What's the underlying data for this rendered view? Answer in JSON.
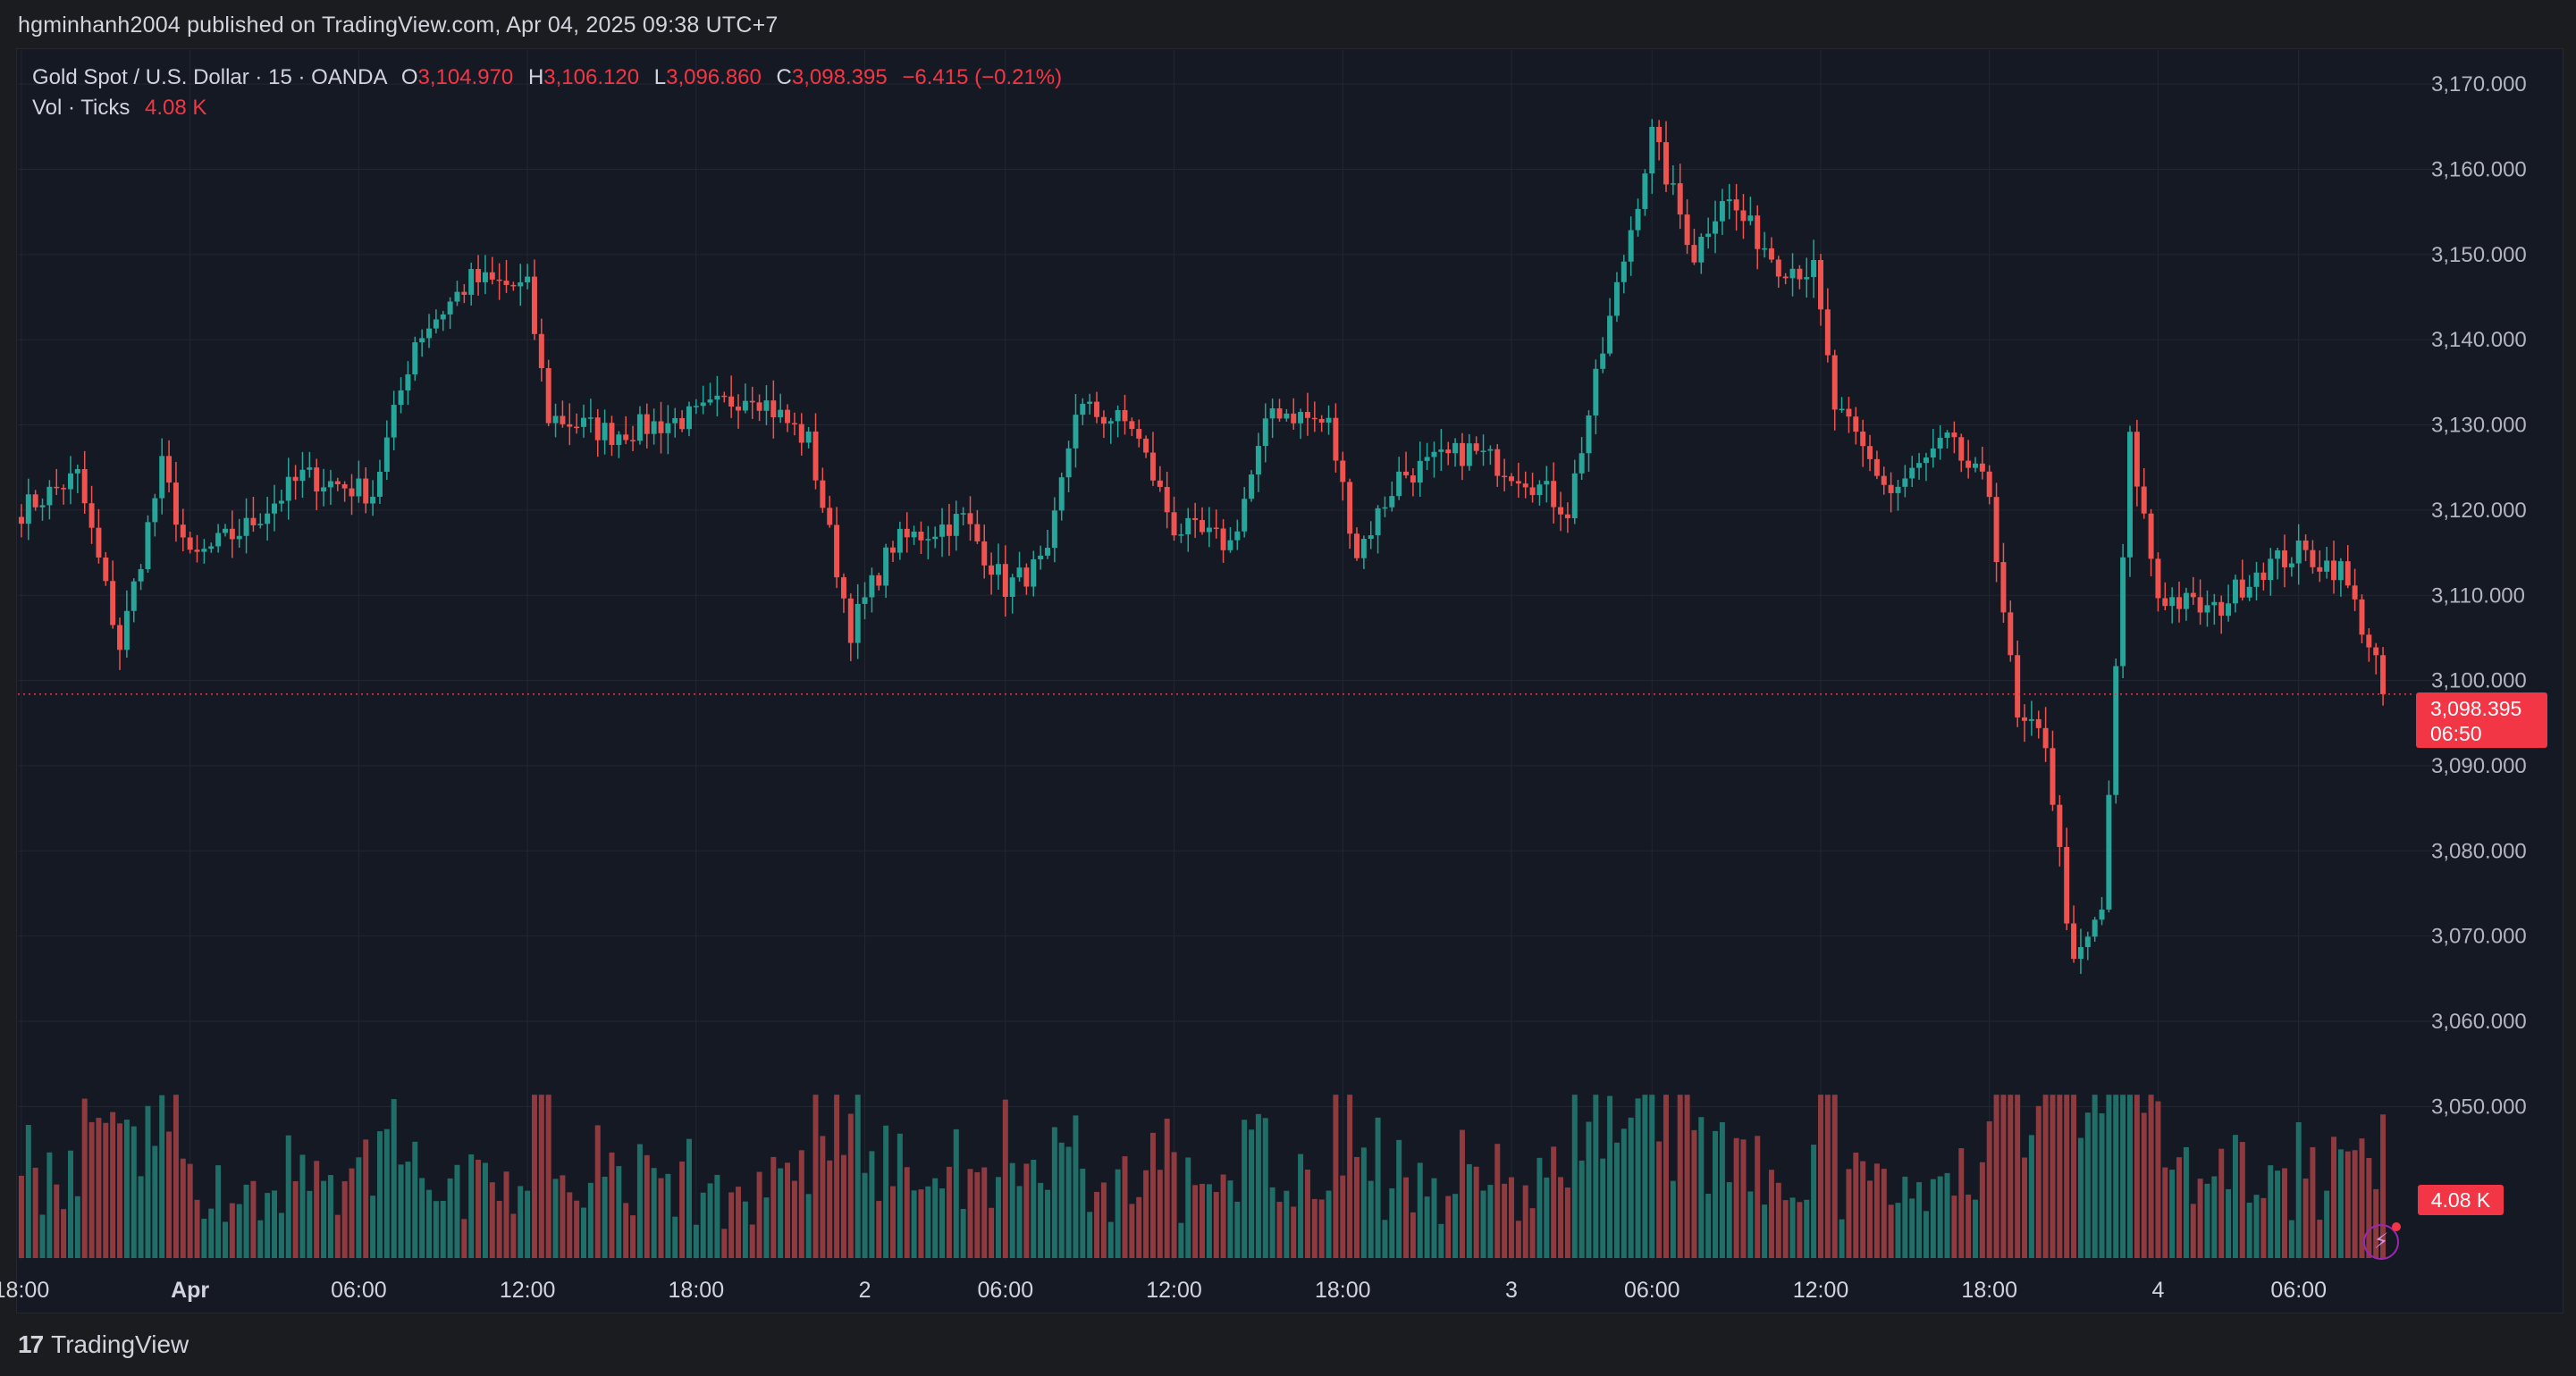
{
  "header": {
    "publish_text": "hgminhanh2004 published on TradingView.com, Apr 04, 2025 09:38 UTC+7"
  },
  "legend": {
    "symbol": "Gold Spot / U.S. Dollar · 15 · OANDA",
    "open_label": "O",
    "open": "3,104.970",
    "high_label": "H",
    "high": "3,106.120",
    "low_label": "L",
    "low": "3,096.860",
    "close_label": "C",
    "close": "3,098.395",
    "change": "−6.415 (−0.21%)",
    "vol_label": "Vol · Ticks",
    "vol_value": "4.08 K"
  },
  "price_badge": {
    "price": "3,098.395",
    "countdown": "06:50"
  },
  "vol_badge": {
    "value": "4.08 K"
  },
  "footer": {
    "brand": "TradingView",
    "logo_text": "17"
  },
  "colors": {
    "up": "#26a69a",
    "down": "#ef5350",
    "vol_up": "#1f6f68",
    "vol_down": "#8f3a3f",
    "background": "#151923",
    "grid": "#232732",
    "text": "#d1d4dc",
    "accent": "#f23645"
  },
  "chart_data": {
    "type": "candlestick",
    "title": "Gold Spot / U.S. Dollar · 15 · OANDA",
    "ylabel": "",
    "ylim": [
      3032,
      3174
    ],
    "y_ticks": [
      3050,
      3060,
      3070,
      3080,
      3090,
      3100,
      3110,
      3120,
      3130,
      3140,
      3150,
      3160,
      3170
    ],
    "y_tick_labels": [
      "3,050.000",
      "3,060.000",
      "3,070.000",
      "3,080.000",
      "3,090.000",
      "3,100.000",
      "3,110.000",
      "3,120.000",
      "3,130.000",
      "3,140.000",
      "3,150.000",
      "3,160.000",
      "3,170.000"
    ],
    "x_ticks": [
      {
        "label": "18:00",
        "bar": 0
      },
      {
        "label": "Apr",
        "bar": 24
      },
      {
        "label": "06:00",
        "bar": 48
      },
      {
        "label": "12:00",
        "bar": 72
      },
      {
        "label": "18:00",
        "bar": 96
      },
      {
        "label": "2",
        "bar": 120
      },
      {
        "label": "06:00",
        "bar": 140
      },
      {
        "label": "12:00",
        "bar": 164
      },
      {
        "label": "18:00",
        "bar": 188
      },
      {
        "label": "3",
        "bar": 212
      },
      {
        "label": "06:00",
        "bar": 232
      },
      {
        "label": "12:00",
        "bar": 256
      },
      {
        "label": "18:00",
        "bar": 280
      },
      {
        "label": "4",
        "bar": 304
      },
      {
        "label": "06:00",
        "bar": 324
      }
    ],
    "last_price": 3098.395,
    "bar_count": 337,
    "waypoints": [
      [
        0,
        3120
      ],
      [
        8,
        3124
      ],
      [
        14,
        3104
      ],
      [
        20,
        3125
      ],
      [
        24,
        3114
      ],
      [
        32,
        3118
      ],
      [
        40,
        3124
      ],
      [
        50,
        3122
      ],
      [
        56,
        3140
      ],
      [
        64,
        3147
      ],
      [
        72,
        3146
      ],
      [
        75,
        3131
      ],
      [
        84,
        3129
      ],
      [
        96,
        3131
      ],
      [
        104,
        3134
      ],
      [
        112,
        3128
      ],
      [
        118,
        3106
      ],
      [
        124,
        3116
      ],
      [
        134,
        3119
      ],
      [
        140,
        3111
      ],
      [
        146,
        3114
      ],
      [
        150,
        3132
      ],
      [
        158,
        3130
      ],
      [
        164,
        3118
      ],
      [
        172,
        3116
      ],
      [
        178,
        3132
      ],
      [
        186,
        3130
      ],
      [
        190,
        3115
      ],
      [
        196,
        3124
      ],
      [
        206,
        3127
      ],
      [
        214,
        3124
      ],
      [
        220,
        3120
      ],
      [
        224,
        3135
      ],
      [
        232,
        3164
      ],
      [
        238,
        3150
      ],
      [
        242,
        3157
      ],
      [
        250,
        3149
      ],
      [
        255,
        3148
      ],
      [
        258,
        3132
      ],
      [
        266,
        3122
      ],
      [
        274,
        3128
      ],
      [
        280,
        3122
      ],
      [
        284,
        3095
      ],
      [
        288,
        3093
      ],
      [
        292,
        3066
      ],
      [
        296,
        3073
      ],
      [
        300,
        3128
      ],
      [
        304,
        3110
      ],
      [
        312,
        3108
      ],
      [
        318,
        3113
      ],
      [
        324,
        3115
      ],
      [
        330,
        3113
      ],
      [
        337,
        3098
      ]
    ],
    "volume_ticks": {
      "ylim": [
        0,
        8
      ],
      "peak": 6.5,
      "last": 4.08,
      "unit": "K"
    }
  }
}
